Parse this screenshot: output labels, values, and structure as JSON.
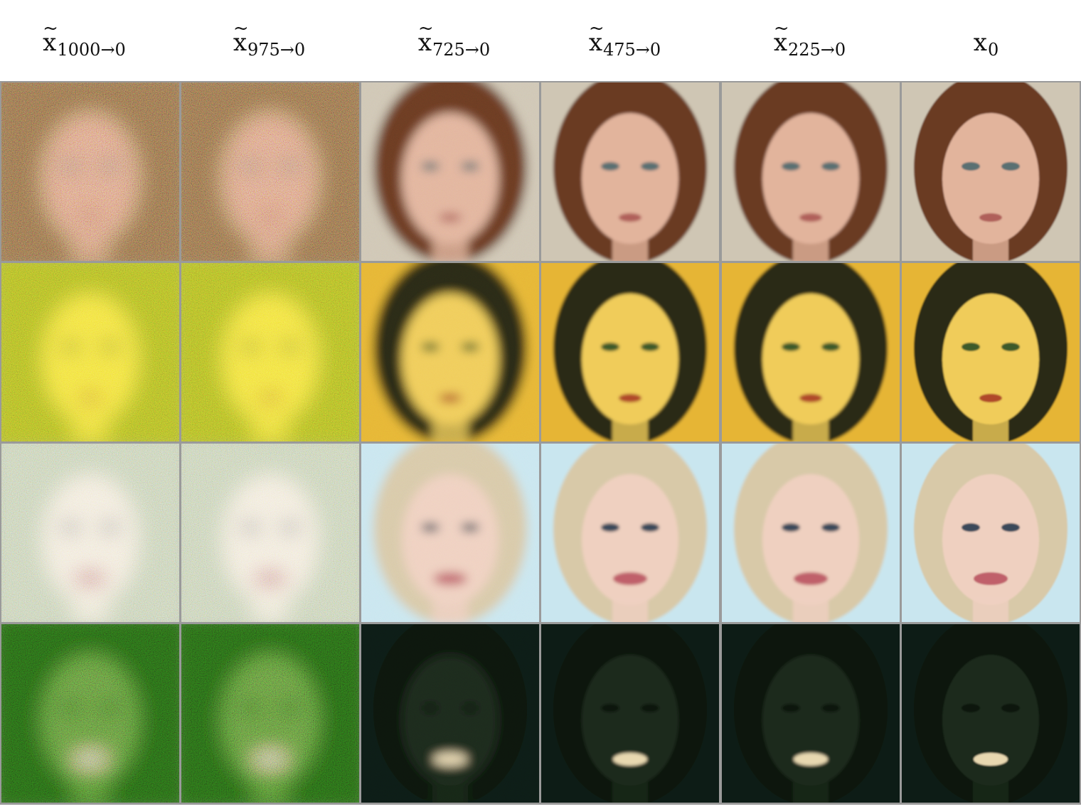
{
  "columns": [
    {
      "symbol": "x",
      "tilde": "~",
      "subscript": "1000→0"
    },
    {
      "symbol": "x",
      "tilde": "~",
      "subscript": "975→0"
    },
    {
      "symbol": "x",
      "tilde": "~",
      "subscript": "725→0"
    },
    {
      "symbol": "x",
      "tilde": "~",
      "subscript": "475→0"
    },
    {
      "symbol": "x",
      "tilde": "~",
      "subscript": "225→0"
    },
    {
      "symbol": "x",
      "tilde": "",
      "subscript": "0"
    }
  ],
  "rows": [
    {
      "subject": "woman-brown-hair",
      "colors": {
        "bg": "#cfc6b4",
        "hair": "#6b3a22",
        "skin": "#e2b49c",
        "noise_bg": "#8a6a4a",
        "noise_face": "#d89a7c",
        "eyes": "#5a6f72",
        "lips": "#b0605a"
      }
    },
    {
      "subject": "face-yellow-tint",
      "colors": {
        "bg": "#e6b536",
        "hair": "#2a2a18",
        "skin": "#f0cc5a",
        "noise_bg": "#a9b225",
        "noise_face": "#f1df3e",
        "eyes": "#3c5a2a",
        "lips": "#b04a2a"
      }
    },
    {
      "subject": "woman-blonde-smiling",
      "colors": {
        "bg": "#c9e6ef",
        "hair": "#d8c9a8",
        "skin": "#efd0c0",
        "noise_bg": "#c3cdb0",
        "noise_face": "#f0e8d8",
        "eyes": "#3a4a5a",
        "lips": "#c0606a"
      }
    },
    {
      "subject": "man-dark-green-tint",
      "colors": {
        "bg": "#0f1f12",
        "hair": "#0a140c",
        "skin": "#1d2a1c",
        "noise_bg": "#275e14",
        "noise_face": "#5d8a3a",
        "eyes": "#0c140c",
        "lips": "#e8d8b0"
      }
    }
  ],
  "stages": [
    {
      "level": "noisy"
    },
    {
      "level": "noisy"
    },
    {
      "level": "blurry"
    },
    {
      "level": "smooth"
    },
    {
      "level": "smooth"
    },
    {
      "level": "sharp"
    }
  ]
}
